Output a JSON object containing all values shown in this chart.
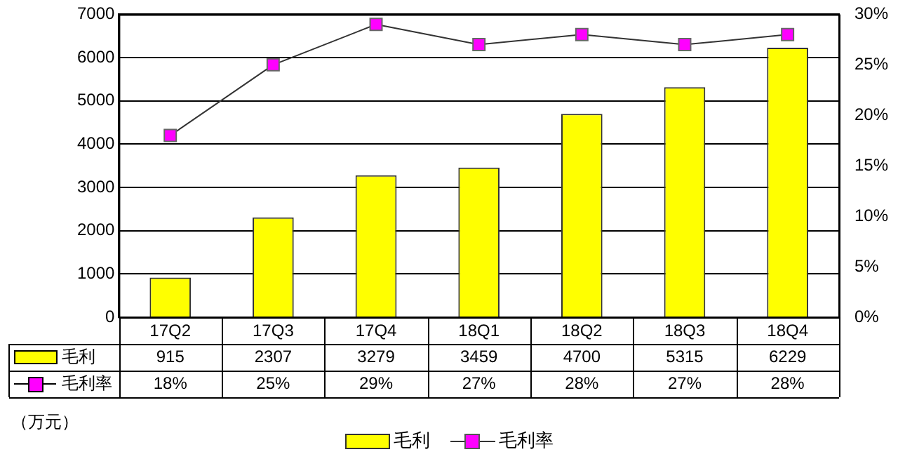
{
  "chart_data": {
    "type": "bar",
    "categories": [
      "17Q2",
      "17Q3",
      "17Q4",
      "18Q1",
      "18Q2",
      "18Q3",
      "18Q4"
    ],
    "series": [
      {
        "name": "毛利",
        "color": "#ffff00",
        "values": [
          915,
          2307,
          3279,
          3459,
          4700,
          5315,
          6229
        ],
        "value_labels": [
          "915",
          "2307",
          "3279",
          "3459",
          "4700",
          "5315",
          "6229"
        ]
      },
      {
        "name": "毛利率",
        "type": "line",
        "axis": "y2",
        "color": "#ff00ff",
        "values": [
          18,
          25,
          29,
          27,
          28,
          27,
          28
        ],
        "value_labels": [
          "18%",
          "25%",
          "29%",
          "27%",
          "28%",
          "27%",
          "28%"
        ]
      }
    ],
    "ylim": [
      0,
      7000
    ],
    "yticks": [
      0,
      1000,
      2000,
      3000,
      4000,
      5000,
      6000,
      7000
    ],
    "y2lim": [
      0,
      30
    ],
    "y2ticks": [
      {
        "value": 0,
        "label": "0%"
      },
      {
        "value": 5,
        "label": "5%"
      },
      {
        "value": 10,
        "label": "10%"
      },
      {
        "value": 15,
        "label": "15%"
      },
      {
        "value": 20,
        "label": "20%"
      },
      {
        "value": 25,
        "label": "25%"
      },
      {
        "value": 30,
        "label": "30%"
      }
    ],
    "grid": "y",
    "legend": "bottom",
    "marker": "square",
    "line_style": "solid",
    "annotations": [
      "（万元）"
    ]
  }
}
